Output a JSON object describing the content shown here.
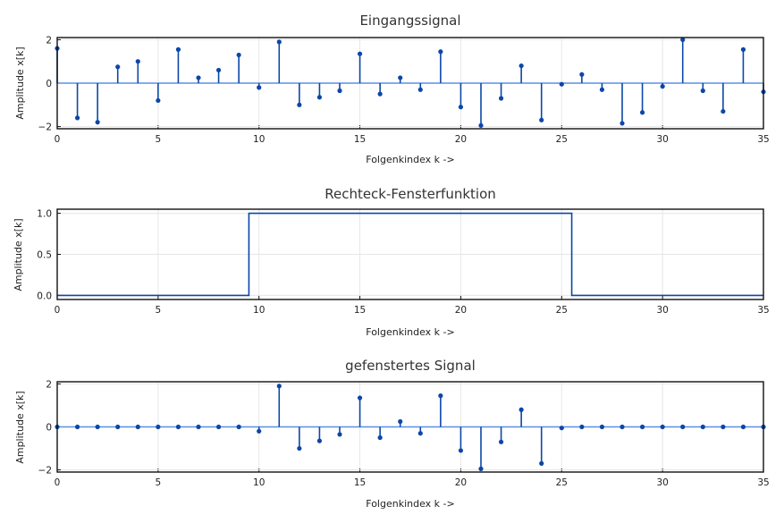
{
  "colors": {
    "line": "#0b47a8",
    "baseline": "#5b8fe6",
    "frame": "#111111",
    "grid": "#e6e6e6"
  },
  "chart_data": [
    {
      "type": "stem",
      "title": "Eingangssignal",
      "xlabel": "Folgenkindex k ->",
      "ylabel": "Amplitude x[k]",
      "xlim": [
        0,
        35
      ],
      "ylim": [
        -2.1,
        2.1
      ],
      "xticks": [
        0,
        5,
        10,
        15,
        20,
        25,
        30,
        35
      ],
      "yticks": [
        -2,
        0,
        2
      ],
      "ytick_labels": [
        "−2",
        "0",
        "2"
      ],
      "grid": true,
      "x": [
        0,
        1,
        2,
        3,
        4,
        5,
        6,
        7,
        8,
        9,
        10,
        11,
        12,
        13,
        14,
        15,
        16,
        17,
        18,
        19,
        20,
        21,
        22,
        23,
        24,
        25,
        26,
        27,
        28,
        29,
        30,
        31,
        32,
        33,
        34,
        35
      ],
      "values": [
        1.6,
        -1.6,
        -1.8,
        0.75,
        1.0,
        -0.8,
        1.55,
        0.25,
        0.6,
        1.3,
        -0.2,
        1.9,
        -1.0,
        -0.65,
        -0.35,
        1.35,
        -0.5,
        0.25,
        -0.3,
        1.45,
        -1.1,
        -1.95,
        -0.7,
        0.8,
        -1.7,
        -0.05,
        0.4,
        -0.3,
        -1.85,
        -1.35,
        -0.15,
        2.0,
        -0.35,
        -1.3,
        1.55,
        -0.4
      ]
    },
    {
      "type": "step",
      "title": "Rechteck-Fensterfunktion",
      "xlabel": "Folgenkindex k ->",
      "ylabel": "Amplitude x[k]",
      "xlim": [
        0,
        35
      ],
      "ylim": [
        -0.05,
        1.05
      ],
      "xticks": [
        0,
        5,
        10,
        15,
        20,
        25,
        30,
        35
      ],
      "yticks": [
        0,
        0.5,
        1.0
      ],
      "ytick_labels": [
        "0.0",
        "0.5",
        "1.0"
      ],
      "grid": true,
      "x": [
        0,
        1,
        2,
        3,
        4,
        5,
        6,
        7,
        8,
        9,
        10,
        11,
        12,
        13,
        14,
        15,
        16,
        17,
        18,
        19,
        20,
        21,
        22,
        23,
        24,
        25,
        26,
        27,
        28,
        29,
        30,
        31,
        32,
        33,
        34,
        35
      ],
      "values": [
        0,
        0,
        0,
        0,
        0,
        0,
        0,
        0,
        0,
        0,
        1,
        1,
        1,
        1,
        1,
        1,
        1,
        1,
        1,
        1,
        1,
        1,
        1,
        1,
        1,
        1,
        0,
        0,
        0,
        0,
        0,
        0,
        0,
        0,
        0,
        0
      ]
    },
    {
      "type": "stem",
      "title": "gefenstertes Signal",
      "xlabel": "Folgenkindex k ->",
      "ylabel": "Amplitude x[k]",
      "xlim": [
        0,
        35
      ],
      "ylim": [
        -2.1,
        2.1
      ],
      "xticks": [
        0,
        5,
        10,
        15,
        20,
        25,
        30,
        35
      ],
      "yticks": [
        -2,
        0,
        2
      ],
      "ytick_labels": [
        "−2",
        "0",
        "2"
      ],
      "grid": true,
      "x": [
        0,
        1,
        2,
        3,
        4,
        5,
        6,
        7,
        8,
        9,
        10,
        11,
        12,
        13,
        14,
        15,
        16,
        17,
        18,
        19,
        20,
        21,
        22,
        23,
        24,
        25,
        26,
        27,
        28,
        29,
        30,
        31,
        32,
        33,
        34,
        35
      ],
      "values": [
        0,
        0,
        0,
        0,
        0,
        0,
        0,
        0,
        0,
        0,
        -0.2,
        1.9,
        -1.0,
        -0.65,
        -0.35,
        1.35,
        -0.5,
        0.25,
        -0.3,
        1.45,
        -1.1,
        -1.95,
        -0.7,
        0.8,
        -1.7,
        -0.05,
        0,
        0,
        0,
        0,
        0,
        0,
        0,
        0,
        0,
        0
      ]
    }
  ]
}
